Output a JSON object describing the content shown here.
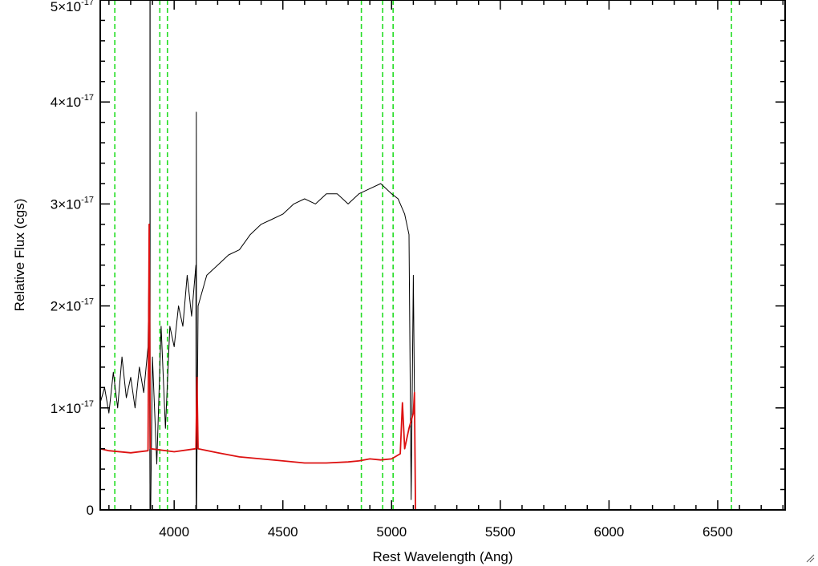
{
  "chart_data": {
    "type": "line",
    "xlabel": "Rest Wavelength (Ang)",
    "ylabel": "Relative Flux (cgs)",
    "xlim": [
      3660,
      6810
    ],
    "ylim": [
      0,
      5e-17
    ],
    "x_ticks": [
      {
        "value": 4000,
        "label": "4000"
      },
      {
        "value": 4500,
        "label": "4500"
      },
      {
        "value": 5000,
        "label": "5000"
      },
      {
        "value": 5500,
        "label": "5500"
      },
      {
        "value": 6000,
        "label": "6000"
      },
      {
        "value": 6500,
        "label": "6500"
      }
    ],
    "y_ticks": [
      {
        "value": 0,
        "label": "0",
        "mantissa": "",
        "exponent": ""
      },
      {
        "value": 1e-17,
        "label": "1×10-17",
        "mantissa": "1×10",
        "exponent": "-17"
      },
      {
        "value": 2e-17,
        "label": "2×10-17",
        "mantissa": "2×10",
        "exponent": "-17"
      },
      {
        "value": 3e-17,
        "label": "3×10-17",
        "mantissa": "3×10",
        "exponent": "-17"
      },
      {
        "value": 4e-17,
        "label": "4×10-17",
        "mantissa": "4×10",
        "exponent": "-17"
      },
      {
        "value": 5e-17,
        "label": "5×10-17",
        "mantissa": "5×10",
        "exponent": "-17"
      }
    ],
    "grid": false,
    "legend": "none",
    "series": [
      {
        "color": "#000000",
        "style": "solid",
        "points": [
          [
            3660,
            1.05e-17
          ],
          [
            3680,
            1.2e-17
          ],
          [
            3700,
            9.5e-18
          ],
          [
            3720,
            1.35e-17
          ],
          [
            3740,
            1e-17
          ],
          [
            3760,
            1.5e-17
          ],
          [
            3780,
            1.1e-17
          ],
          [
            3800,
            1.3e-17
          ],
          [
            3820,
            1e-17
          ],
          [
            3840,
            1.4e-17
          ],
          [
            3860,
            1.15e-17
          ],
          [
            3880,
            1.6e-17
          ],
          [
            3885,
            2.5e-17
          ],
          [
            3889,
            0.0
          ],
          [
            3892,
            0.0
          ],
          [
            3900,
            1.5e-17
          ],
          [
            3920,
            4.5e-18
          ],
          [
            3940,
            1.8e-17
          ],
          [
            3960,
            8e-18
          ],
          [
            3980,
            1.8e-17
          ],
          [
            4000,
            1.6e-17
          ],
          [
            4020,
            2e-17
          ],
          [
            4040,
            1.8e-17
          ],
          [
            4060,
            2.3e-17
          ],
          [
            4080,
            1.9e-17
          ],
          [
            4100,
            2.4e-17
          ],
          [
            4101,
            0.0
          ],
          [
            4102,
            3.9e-17
          ],
          [
            4103,
            0.0
          ],
          [
            4110,
            2e-17
          ],
          [
            4150,
            2.3e-17
          ],
          [
            4200,
            2.4e-17
          ],
          [
            4250,
            2.5e-17
          ],
          [
            4300,
            2.55e-17
          ],
          [
            4350,
            2.7e-17
          ],
          [
            4400,
            2.8e-17
          ],
          [
            4450,
            2.85e-17
          ],
          [
            4500,
            2.9e-17
          ],
          [
            4550,
            3e-17
          ],
          [
            4600,
            3.05e-17
          ],
          [
            4650,
            3e-17
          ],
          [
            4700,
            3.1e-17
          ],
          [
            4750,
            3.1e-17
          ],
          [
            4800,
            3e-17
          ],
          [
            4850,
            3.1e-17
          ],
          [
            4900,
            3.15e-17
          ],
          [
            4950,
            3.2e-17
          ],
          [
            5000,
            3.1e-17
          ],
          [
            5030,
            3.05e-17
          ],
          [
            5060,
            2.9e-17
          ],
          [
            5080,
            2.7e-17
          ],
          [
            5090,
            1e-18
          ],
          [
            5100,
            2.3e-17
          ],
          [
            5110,
            0.0
          ],
          [
            6810,
            0.0
          ]
        ]
      },
      {
        "color": "#dd1111",
        "style": "solid",
        "points": [
          [
            3660,
            6e-18
          ],
          [
            3700,
            5.8e-18
          ],
          [
            3800,
            5.6e-18
          ],
          [
            3880,
            5.8e-18
          ],
          [
            3885,
            2.8e-17
          ],
          [
            3890,
            6e-18
          ],
          [
            4000,
            5.7e-18
          ],
          [
            4100,
            6e-18
          ],
          [
            4105,
            1.3e-17
          ],
          [
            4110,
            6e-18
          ],
          [
            4200,
            5.6e-18
          ],
          [
            4300,
            5.2e-18
          ],
          [
            4400,
            5e-18
          ],
          [
            4500,
            4.8e-18
          ],
          [
            4600,
            4.6e-18
          ],
          [
            4700,
            4.6e-18
          ],
          [
            4800,
            4.7e-18
          ],
          [
            4850,
            4.8e-18
          ],
          [
            4900,
            5e-18
          ],
          [
            4950,
            4.9e-18
          ],
          [
            5000,
            5e-18
          ],
          [
            5040,
            5.5e-18
          ],
          [
            5050,
            1.05e-17
          ],
          [
            5060,
            6e-18
          ],
          [
            5080,
            8e-18
          ],
          [
            5100,
            9.5e-18
          ],
          [
            5105,
            1.15e-17
          ],
          [
            5110,
            0.0
          ],
          [
            6810,
            0.0
          ]
        ]
      }
    ],
    "vertical_lines": [
      {
        "x": 3727,
        "color": "#22dd22",
        "style": "dashed"
      },
      {
        "x": 3889,
        "color": "#000000",
        "style": "solid"
      },
      {
        "x": 3934,
        "color": "#22dd22",
        "style": "dashed"
      },
      {
        "x": 3969,
        "color": "#22dd22",
        "style": "dashed"
      },
      {
        "x": 4861,
        "color": "#22dd22",
        "style": "dashed"
      },
      {
        "x": 4959,
        "color": "#22dd22",
        "style": "dashed"
      },
      {
        "x": 5007,
        "color": "#22dd22",
        "style": "dashed"
      },
      {
        "x": 6563,
        "color": "#22dd22",
        "style": "dashed"
      }
    ]
  }
}
